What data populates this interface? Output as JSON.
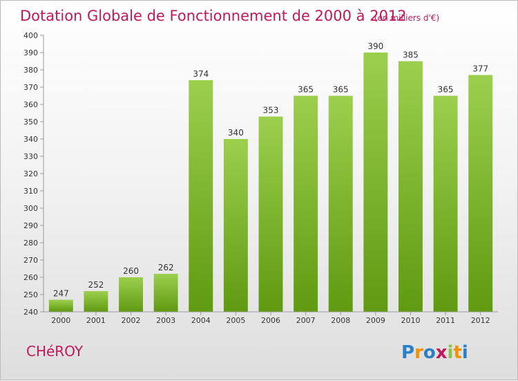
{
  "chart_data": {
    "type": "bar",
    "title": "Dotation Globale de Fonctionnement de 2000 à 2012",
    "subtitle": "(en milliers d'€)",
    "categories": [
      "2000",
      "2001",
      "2002",
      "2003",
      "2004",
      "2005",
      "2006",
      "2007",
      "2008",
      "2009",
      "2010",
      "2011",
      "2012"
    ],
    "values": [
      247,
      252,
      260,
      262,
      374,
      340,
      353,
      365,
      365,
      390,
      385,
      365,
      377
    ],
    "ylim": [
      240,
      400
    ],
    "yticks": [
      240,
      250,
      260,
      270,
      280,
      290,
      300,
      310,
      320,
      330,
      340,
      350,
      360,
      370,
      380,
      390,
      400
    ],
    "grid": false,
    "colors": {
      "bar_light": "#9ccf4e",
      "bar_dark": "#5f9a10",
      "title": "#c2185b"
    }
  },
  "commune": "CHéROY",
  "logo": {
    "text": "Proxiti",
    "letters": [
      "P",
      "r",
      "o",
      "x",
      "i",
      "t",
      "i"
    ],
    "colors": [
      "#2a7fc9",
      "#f39200",
      "#2a7fc9",
      "#c2185b",
      "#8bc34a",
      "#f39200",
      "#2a7fc9"
    ]
  }
}
